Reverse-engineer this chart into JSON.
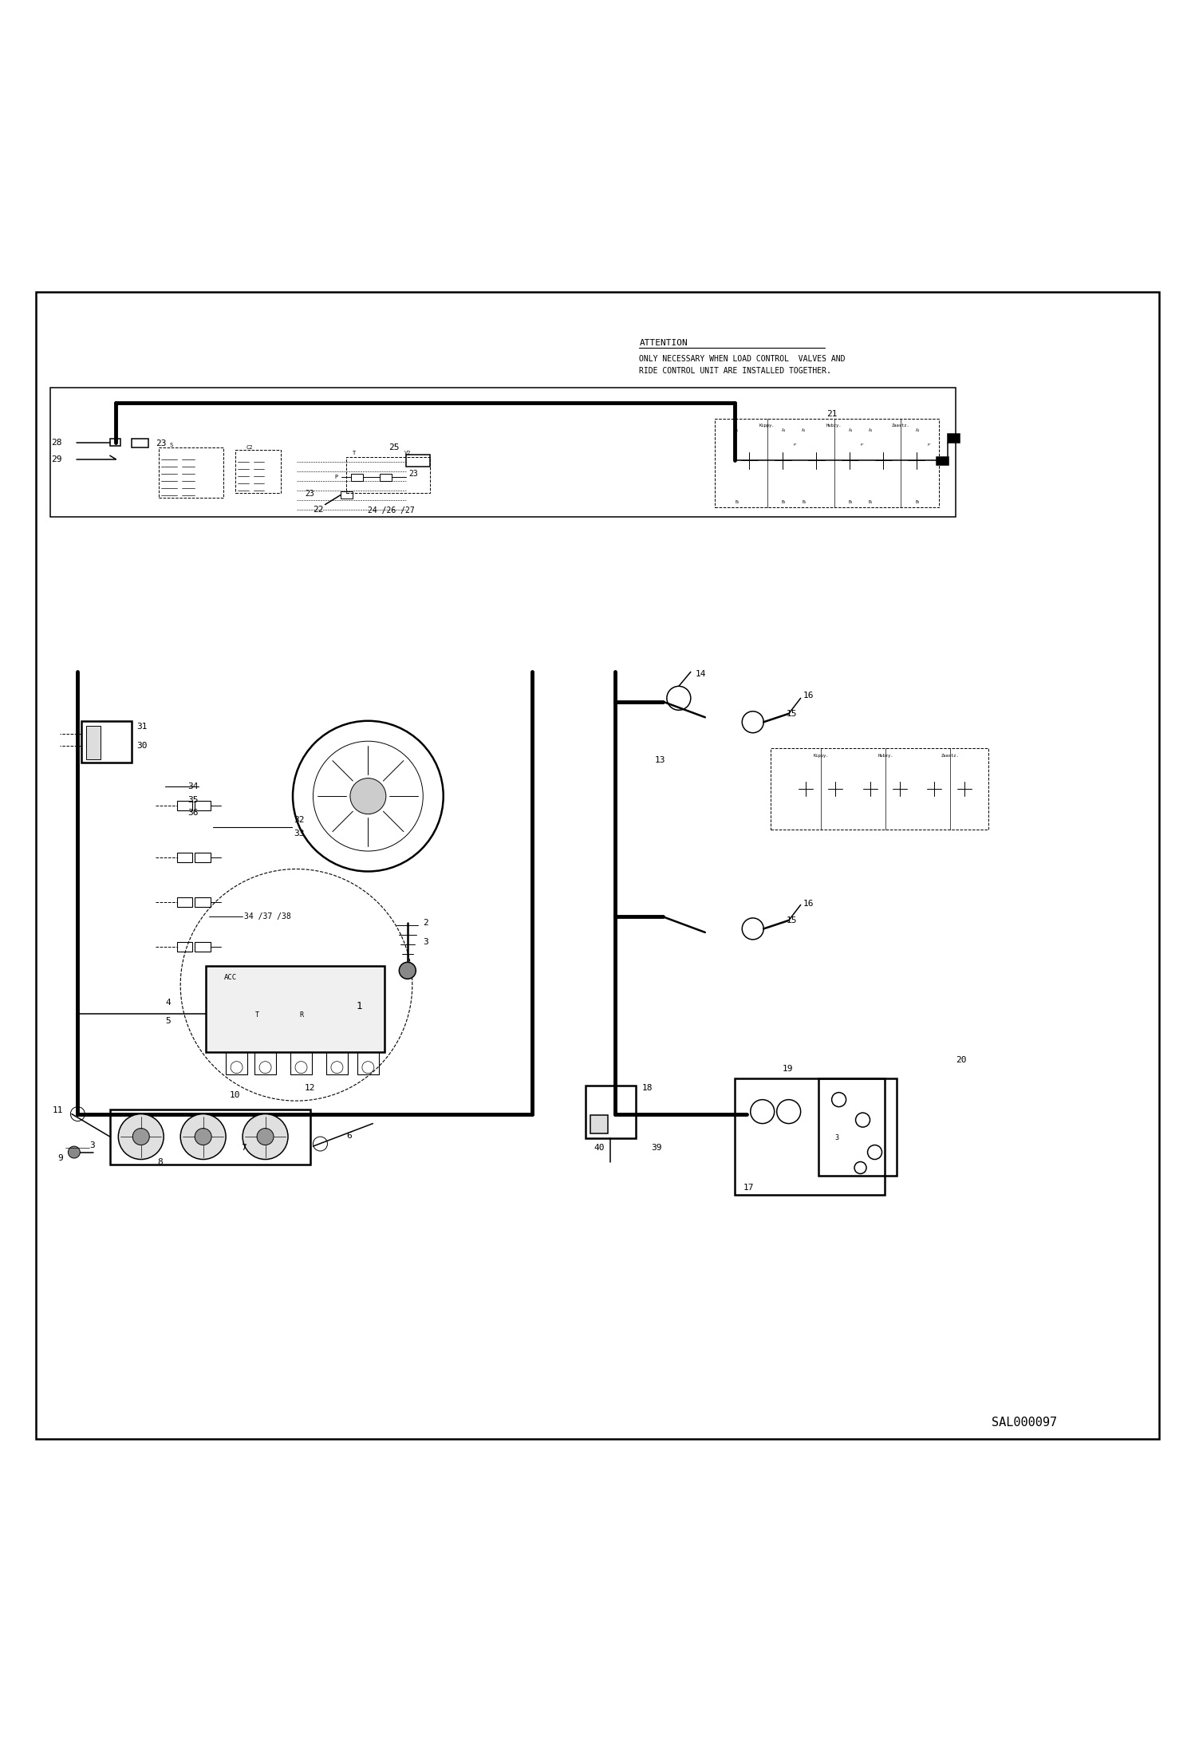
{
  "bg_color": "#ffffff",
  "line_color": "#000000",
  "attention_title": "ATTENTION",
  "attention_line1": "ONLY NECESSARY WHEN LOAD CONTROL  VALVES AND",
  "attention_line2": "RIDE CONTROL UNIT ARE INSTALLED TOGETHER.",
  "part_number": "SAL000097"
}
